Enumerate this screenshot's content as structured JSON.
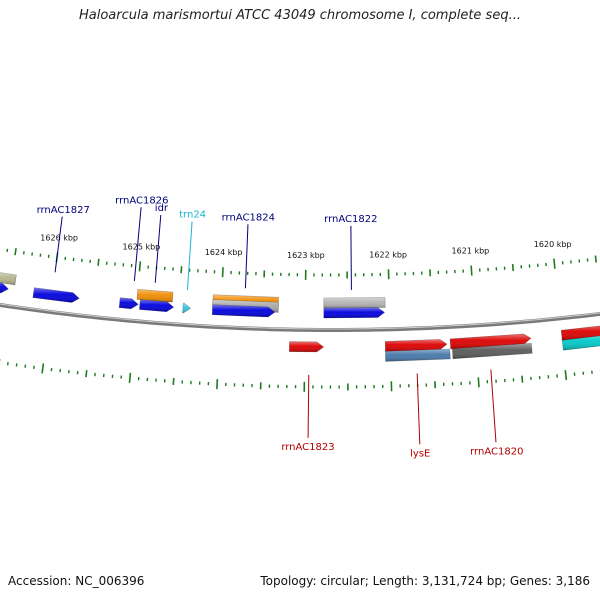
{
  "title": "Haloarcula marismortui ATCC 43049 chromosome I, complete seq...",
  "footer": {
    "accession": "Accession: NC_006396",
    "summary": "Topology: circular; Length: 3,131,724 bp; Genes: 3,186"
  },
  "colors": {
    "backbone": "#7a7a7a",
    "tick": "#1f7a1f",
    "upper_label": "#00007a",
    "trna_label": "#19b4d2",
    "lower_label": "#b40000"
  },
  "scale": {
    "unit": "kbp",
    "ticks": [
      {
        "kbp": 1626,
        "label": "1626 kbp"
      },
      {
        "kbp": 1625,
        "label": "1625 kbp"
      },
      {
        "kbp": 1624,
        "label": "1624 kbp"
      },
      {
        "kbp": 1623,
        "label": "1623 kbp"
      },
      {
        "kbp": 1622,
        "label": "1622 kbp"
      },
      {
        "kbp": 1621,
        "label": "1621 kbp"
      },
      {
        "kbp": 1620,
        "label": "1620 kbp"
      }
    ]
  },
  "features": [
    {
      "name": "feature-olive-edge",
      "strand": "+",
      "lane": 2,
      "start": 1626.7,
      "end": 1626.45,
      "color": "#b4b48c",
      "arrow": false
    },
    {
      "name": "feature-blue-edge",
      "strand": "+",
      "lane": 1,
      "start": 1626.7,
      "end": 1626.52,
      "color": "#0000dc",
      "arrow": true
    },
    {
      "name": "feature-blue-1",
      "strand": "+",
      "lane": 1,
      "start": 1626.22,
      "end": 1625.68,
      "color": "#0000dc",
      "arrow": true
    },
    {
      "name": "feature-blue-2",
      "strand": "+",
      "lane": 1,
      "start": 1625.2,
      "end": 1624.98,
      "color": "#0000dc",
      "arrow": true
    },
    {
      "name": "feature-blue-3",
      "strand": "+",
      "lane": 1,
      "start": 1624.96,
      "end": 1624.56,
      "color": "#0000dc",
      "arrow": true
    },
    {
      "name": "feature-orange-idr",
      "strand": "+",
      "lane": 2,
      "start": 1625.0,
      "end": 1624.58,
      "color": "#f08c00",
      "arrow": false
    },
    {
      "name": "feature-trna",
      "strand": "+",
      "lane": 1,
      "start": 1624.45,
      "end": 1624.36,
      "color": "#32c8e6",
      "arrow": true
    },
    {
      "name": "feature-orange-2",
      "strand": "+",
      "lane": 2,
      "start": 1624.1,
      "end": 1623.32,
      "color": "#f08c00",
      "arrow": false
    },
    {
      "name": "feature-gray-1",
      "strand": "+",
      "lane": 2,
      "start": 1624.1,
      "end": 1623.32,
      "color": "#a8a8a8",
      "arrow": false,
      "offset": 5
    },
    {
      "name": "feature-blue-4",
      "strand": "+",
      "lane": 1,
      "start": 1624.1,
      "end": 1623.36,
      "color": "#0000dc",
      "arrow": true
    },
    {
      "name": "feature-gray-2",
      "strand": "+",
      "lane": 2,
      "start": 1622.78,
      "end": 1622.05,
      "color": "#b4b4b4",
      "arrow": false
    },
    {
      "name": "feature-blue-5",
      "strand": "+",
      "lane": 1,
      "start": 1622.78,
      "end": 1622.06,
      "color": "#0000dc",
      "arrow": true
    },
    {
      "name": "feature-red-small",
      "strand": "-",
      "lane": 1,
      "start": 1623.18,
      "end": 1622.78,
      "color": "#dc0000",
      "arrow": true
    },
    {
      "name": "feature-red-lyse",
      "strand": "-",
      "lane": 1,
      "start": 1622.06,
      "end": 1621.34,
      "color": "#dc0000",
      "arrow": true
    },
    {
      "name": "feature-steel-lyse",
      "strand": "-",
      "lane": 2,
      "start": 1622.06,
      "end": 1621.31,
      "color": "#4678aa",
      "arrow": false
    },
    {
      "name": "feature-red-1820",
      "strand": "-",
      "lane": 1,
      "start": 1621.3,
      "end": 1620.36,
      "color": "#dc0000",
      "arrow": true
    },
    {
      "name": "feature-darkgray-1820",
      "strand": "-",
      "lane": 2,
      "start": 1621.28,
      "end": 1620.36,
      "color": "#5a5a5a",
      "arrow": false
    },
    {
      "name": "feature-red-edge",
      "strand": "-",
      "lane": 1,
      "start": 1620.0,
      "end": 1619.3,
      "color": "#dc0000",
      "arrow": true
    },
    {
      "name": "feature-cyan-edge",
      "strand": "-",
      "lane": 2,
      "start": 1620.0,
      "end": 1619.3,
      "color": "#00c8c8",
      "arrow": false
    }
  ],
  "gene_labels": [
    {
      "text": "rrnAC1827",
      "group": "upper",
      "at_kbp": 1626.0
    },
    {
      "text": "rrnAC1826",
      "group": "upper",
      "at_kbp": 1625.05
    },
    {
      "text": "idr",
      "group": "upper",
      "at_kbp": 1624.8
    },
    {
      "text": "trn24",
      "group": "trna",
      "at_kbp": 1624.41
    },
    {
      "text": "rrnAC1824",
      "group": "upper",
      "at_kbp": 1623.72
    },
    {
      "text": "rrnAC1822",
      "group": "upper",
      "at_kbp": 1622.45
    },
    {
      "text": "rrnAC1823",
      "group": "lower",
      "at_kbp": 1622.95
    },
    {
      "text": "lysE",
      "group": "lower",
      "at_kbp": 1621.7
    },
    {
      "text": "rrnAC1820",
      "group": "lower",
      "at_kbp": 1620.85
    }
  ]
}
